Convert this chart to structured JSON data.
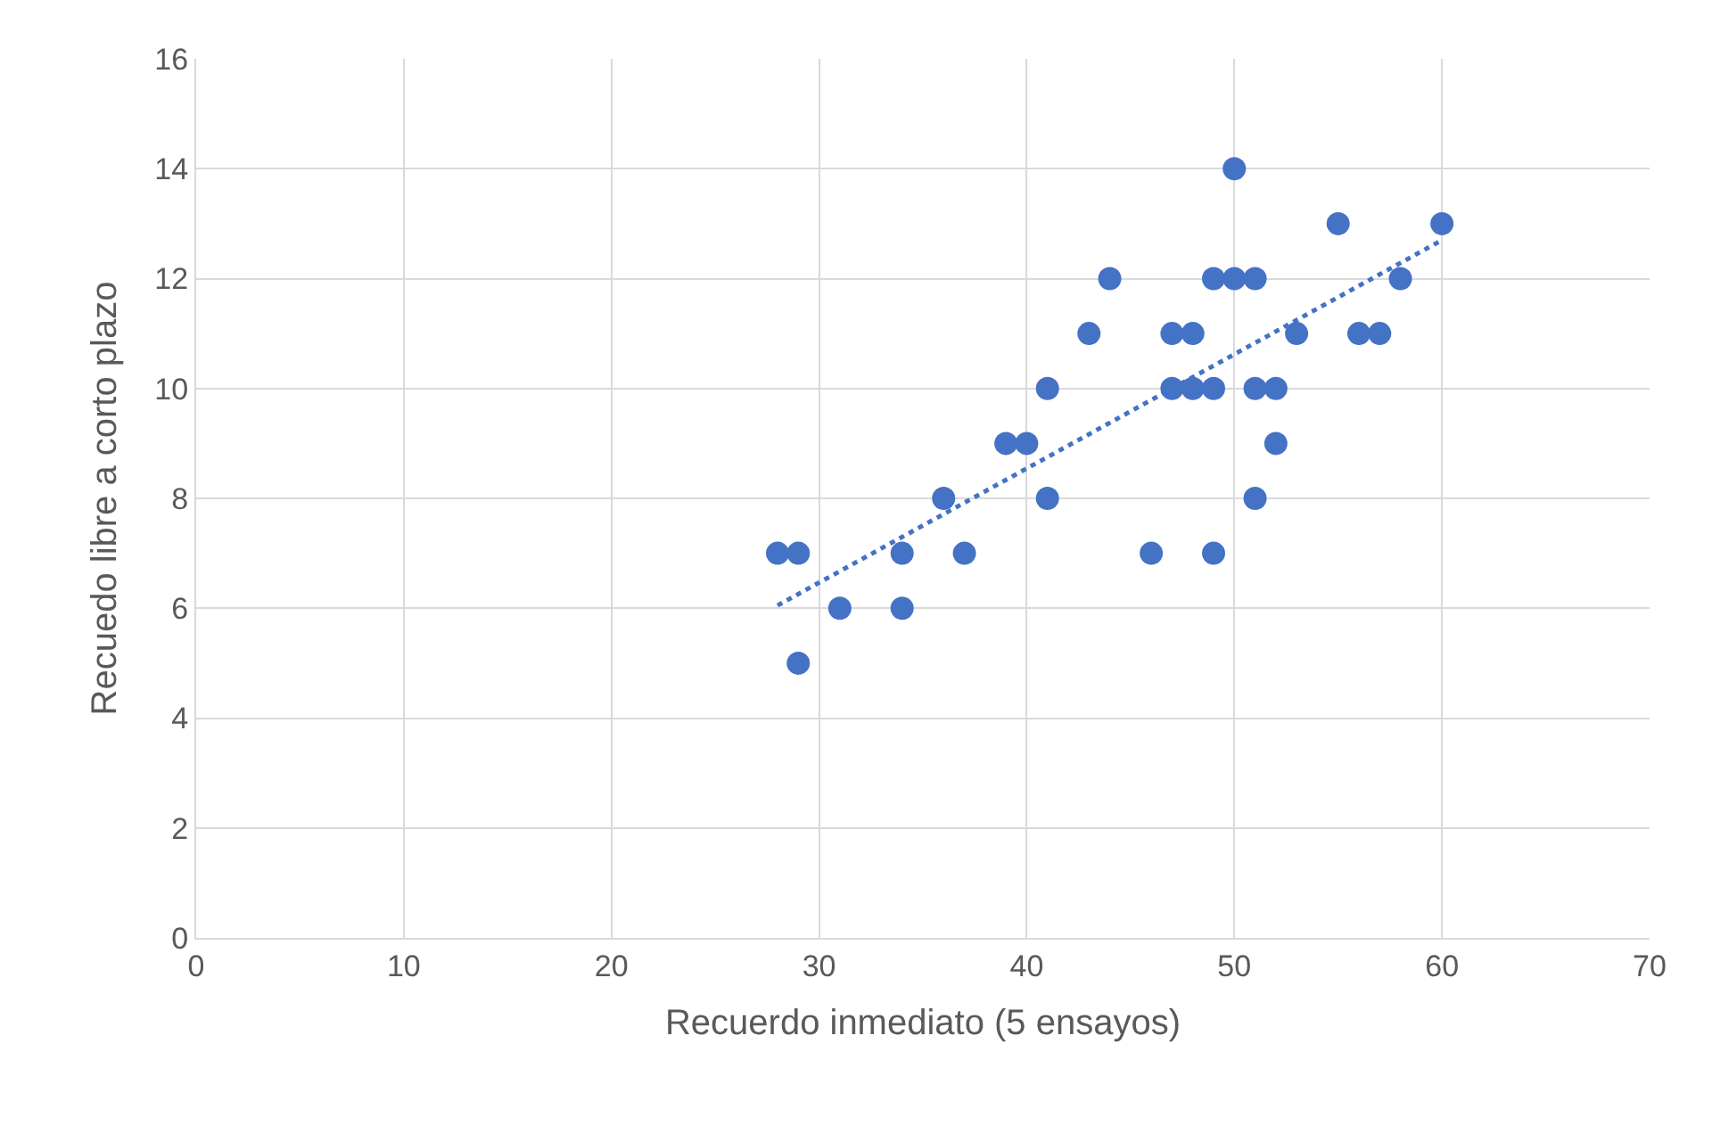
{
  "chart_data": {
    "type": "scatter",
    "xlabel": "Recuerdo inmediato (5 ensayos)",
    "ylabel": "Recuedo libre a corto plazo",
    "xlim": [
      0,
      70
    ],
    "xticks": [
      0,
      10,
      20,
      30,
      40,
      50,
      60,
      70
    ],
    "ylim": [
      0,
      16
    ],
    "yticks": [
      0,
      2,
      4,
      6,
      8,
      10,
      12,
      14,
      16
    ],
    "grid": true,
    "marker": "circle",
    "series": [
      {
        "color": "#4472c4",
        "x": [
          28,
          29,
          29,
          31,
          34,
          34,
          36,
          37,
          39,
          40,
          41,
          41,
          43,
          44,
          46,
          47,
          47,
          48,
          48,
          49,
          49,
          49,
          50,
          50,
          51,
          51,
          51,
          52,
          52,
          53,
          55,
          56,
          57,
          58,
          60
        ],
        "values": [
          7,
          7,
          5,
          6,
          7,
          6,
          8,
          7,
          9,
          9,
          10,
          8,
          11,
          12,
          7,
          11,
          10,
          11,
          10,
          12,
          10,
          7,
          14,
          12,
          12,
          10,
          8,
          10,
          9,
          11,
          13,
          11,
          11,
          12,
          13
        ]
      },
      {
        "type": "line",
        "color": "#4472c4",
        "line_style": "dotted",
        "marker": "none",
        "x": [
          28,
          60
        ],
        "values": [
          6.05,
          12.7
        ]
      }
    ]
  }
}
